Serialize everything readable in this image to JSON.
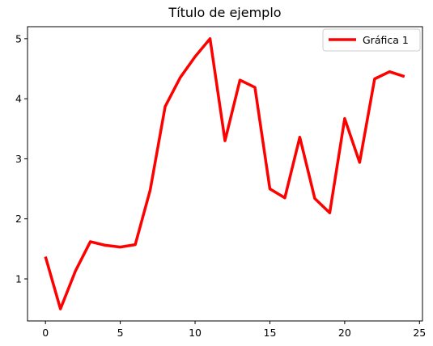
{
  "chart_data": {
    "type": "line",
    "title": "Título de ejemplo",
    "xlabel": "",
    "ylabel": "",
    "xlim": [
      -1.2,
      25.2
    ],
    "ylim": [
      0.3,
      5.2
    ],
    "x_ticks": [
      0,
      5,
      10,
      15,
      20,
      25
    ],
    "y_ticks": [
      1,
      2,
      3,
      4,
      5
    ],
    "grid": false,
    "legend_position": "top-right",
    "series": [
      {
        "name": "Gráfica 1",
        "color": "#ff0000",
        "x": [
          0,
          1,
          2,
          3,
          4,
          5,
          6,
          7,
          8,
          9,
          10,
          11,
          12,
          13,
          14,
          15,
          16,
          17,
          18,
          19,
          20,
          21,
          22,
          23,
          24
        ],
        "values": [
          1.37,
          0.5,
          1.13,
          1.62,
          1.56,
          1.53,
          1.57,
          2.48,
          3.87,
          4.35,
          4.7,
          5.0,
          3.3,
          4.31,
          4.19,
          2.5,
          2.35,
          3.36,
          2.34,
          2.1,
          3.67,
          2.94,
          4.33,
          4.45,
          4.37
        ]
      }
    ]
  }
}
